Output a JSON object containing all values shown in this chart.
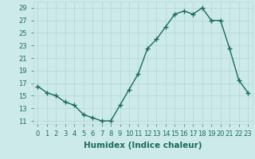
{
  "x": [
    0,
    1,
    2,
    3,
    4,
    5,
    6,
    7,
    8,
    9,
    10,
    11,
    12,
    13,
    14,
    15,
    16,
    17,
    18,
    19,
    20,
    21,
    22,
    23
  ],
  "y": [
    16.5,
    15.5,
    15.0,
    14.0,
    13.5,
    12.0,
    11.5,
    11.0,
    11.0,
    13.5,
    16.0,
    18.5,
    22.5,
    24.0,
    26.0,
    28.0,
    28.5,
    28.0,
    29.0,
    27.0,
    27.0,
    22.5,
    17.5,
    15.5
  ],
  "xlabel": "Humidex (Indice chaleur)",
  "line_color": "#1a6b5a",
  "marker_color": "#1a6b5a",
  "bg_color": "#cceaea",
  "grid_color": "#b8d8d8",
  "tick_color": "#1a6b5a",
  "ylim": [
    10.5,
    30.0
  ],
  "xlim": [
    -0.5,
    23.5
  ],
  "yticks": [
    11,
    13,
    15,
    17,
    19,
    21,
    23,
    25,
    27,
    29
  ],
  "xticks": [
    0,
    1,
    2,
    3,
    4,
    5,
    6,
    7,
    8,
    9,
    10,
    11,
    12,
    13,
    14,
    15,
    16,
    17,
    18,
    19,
    20,
    21,
    22,
    23
  ],
  "xtick_labels": [
    "0",
    "1",
    "2",
    "3",
    "4",
    "5",
    "6",
    "7",
    "8",
    "9",
    "10",
    "11",
    "12",
    "13",
    "14",
    "15",
    "16",
    "17",
    "18",
    "19",
    "20",
    "21",
    "22",
    "23"
  ],
  "linewidth": 1.0,
  "markersize": 2.2,
  "xlabel_fontsize": 7.5,
  "tick_fontsize": 6.0
}
